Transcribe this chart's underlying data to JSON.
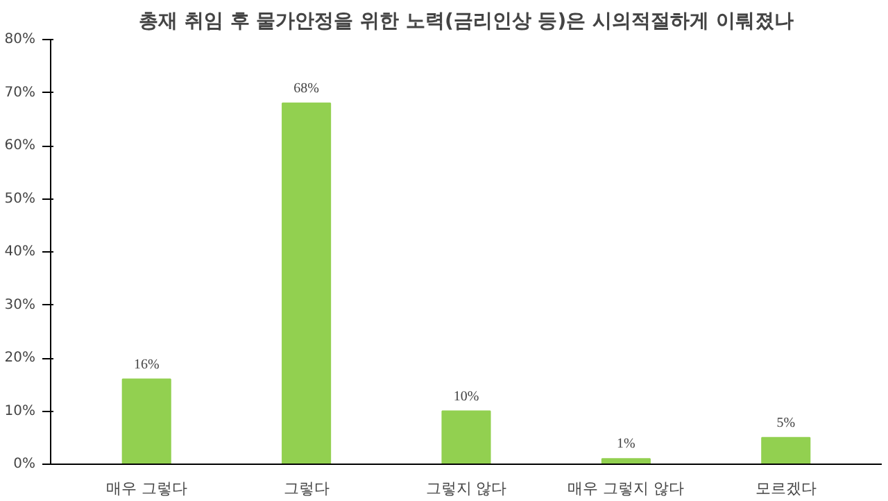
{
  "chart_data": {
    "type": "bar",
    "title": "총재 취임 후 물가안정을 위한 노력(금리인상 등)은 시의적절하게 이뤄졌나",
    "categories": [
      "매우 그렇다",
      "그렇다",
      "그렇지 않다",
      "매우 그렇지 않다",
      "모르겠다"
    ],
    "values": [
      16,
      68,
      10,
      1,
      5
    ],
    "value_labels": [
      "16%",
      "68%",
      "10%",
      "1%",
      "5%"
    ],
    "color": "#92d050",
    "ylim": [
      0,
      80
    ],
    "yticks": [
      {
        "value": 0,
        "label": "0%"
      },
      {
        "value": 10,
        "label": "10%"
      },
      {
        "value": 20,
        "label": "20%"
      },
      {
        "value": 30,
        "label": "30%"
      },
      {
        "value": 40,
        "label": "40%"
      },
      {
        "value": 50,
        "label": "50%"
      },
      {
        "value": 60,
        "label": "60%"
      },
      {
        "value": 70,
        "label": "70%"
      },
      {
        "value": 80,
        "label": "80%"
      }
    ],
    "grid": false
  }
}
